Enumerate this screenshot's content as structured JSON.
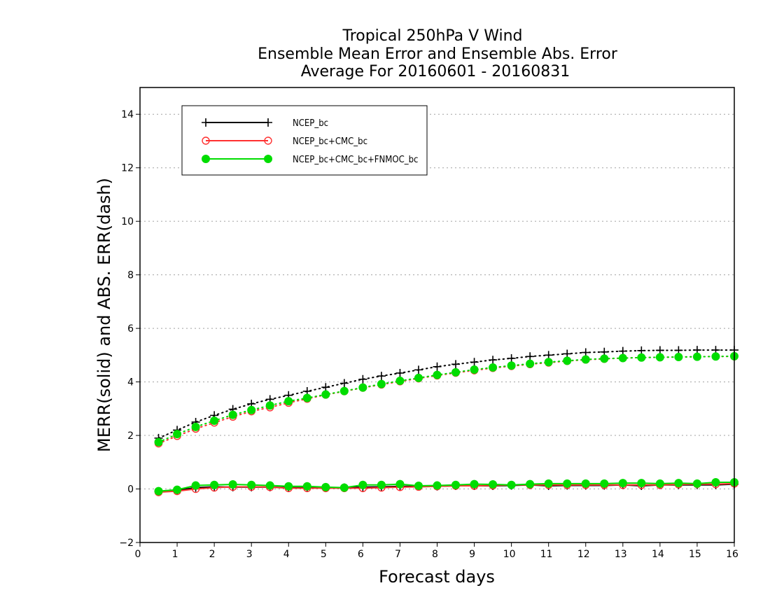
{
  "chart_data": {
    "type": "line",
    "title": [
      "Tropical 250hPa V Wind",
      "Ensemble Mean Error and Ensemble Abs. Error",
      "Average For 20160601 - 20160831"
    ],
    "xlabel": "Forecast days",
    "ylabel": "MERR(solid) and ABS. ERR(dash)",
    "xlim": [
      0,
      16
    ],
    "ylim": [
      -2,
      15
    ],
    "xticks": [
      0,
      1,
      2,
      3,
      4,
      5,
      6,
      7,
      8,
      9,
      10,
      11,
      12,
      13,
      14,
      15,
      16
    ],
    "yticks": [
      -2,
      0,
      2,
      4,
      6,
      8,
      10,
      12,
      14
    ],
    "grid": "horizontal dotted",
    "legend_position": "top-left",
    "x": [
      0.5,
      1,
      1.5,
      2,
      2.5,
      3,
      3.5,
      4,
      4.5,
      5,
      5.5,
      6,
      6.5,
      7,
      7.5,
      8,
      8.5,
      9,
      9.5,
      10,
      10.5,
      11,
      11.5,
      12,
      12.5,
      13,
      13.5,
      14,
      14.5,
      15,
      15.5,
      16
    ],
    "series": [
      {
        "name": "NCEP_bc",
        "color": "#000000",
        "marker": "plus",
        "abs_err": [
          1.9,
          2.2,
          2.5,
          2.75,
          2.98,
          3.18,
          3.35,
          3.5,
          3.65,
          3.8,
          3.95,
          4.1,
          4.22,
          4.33,
          4.45,
          4.57,
          4.66,
          4.74,
          4.82,
          4.88,
          4.95,
          5.0,
          5.05,
          5.1,
          5.12,
          5.15,
          5.17,
          5.18,
          5.18,
          5.19,
          5.19,
          5.19
        ],
        "mean_err": [
          -0.1,
          -0.05,
          0.05,
          0.08,
          0.07,
          0.07,
          0.07,
          0.05,
          0.05,
          0.05,
          0.05,
          0.07,
          0.08,
          0.1,
          0.1,
          0.1,
          0.12,
          0.12,
          0.12,
          0.13,
          0.15,
          0.12,
          0.13,
          0.13,
          0.13,
          0.15,
          0.12,
          0.15,
          0.15,
          0.15,
          0.15,
          0.18
        ]
      },
      {
        "name": "NCEP_bc+CMC_bc",
        "color": "#ff3030",
        "marker": "open-circle",
        "abs_err": [
          1.7,
          1.98,
          2.25,
          2.48,
          2.7,
          2.9,
          3.05,
          3.22,
          3.37,
          3.52,
          3.65,
          3.78,
          3.9,
          4.02,
          4.13,
          4.24,
          4.34,
          4.43,
          4.52,
          4.59,
          4.66,
          4.72,
          4.78,
          4.83,
          4.86,
          4.89,
          4.91,
          4.92,
          4.93,
          4.94,
          4.95,
          4.95
        ],
        "mean_err": [
          -0.12,
          -0.08,
          0.0,
          0.05,
          0.08,
          0.08,
          0.07,
          0.03,
          0.03,
          0.03,
          0.03,
          0.03,
          0.05,
          0.07,
          0.08,
          0.1,
          0.12,
          0.12,
          0.13,
          0.15,
          0.15,
          0.15,
          0.15,
          0.15,
          0.15,
          0.15,
          0.15,
          0.15,
          0.17,
          0.18,
          0.18,
          0.2
        ]
      },
      {
        "name": "NCEP_bc+CMC_bc+FNMOC_bc",
        "color": "#00dd00",
        "marker": "filled-circle",
        "abs_err": [
          1.75,
          2.05,
          2.32,
          2.55,
          2.77,
          2.95,
          3.12,
          3.28,
          3.4,
          3.53,
          3.66,
          3.79,
          3.92,
          4.04,
          4.15,
          4.26,
          4.36,
          4.46,
          4.54,
          4.61,
          4.68,
          4.74,
          4.79,
          4.84,
          4.87,
          4.89,
          4.91,
          4.92,
          4.93,
          4.94,
          4.95,
          4.96
        ],
        "mean_err": [
          -0.08,
          -0.03,
          0.13,
          0.15,
          0.17,
          0.15,
          0.13,
          0.1,
          0.1,
          0.07,
          0.05,
          0.15,
          0.15,
          0.18,
          0.12,
          0.13,
          0.15,
          0.18,
          0.17,
          0.15,
          0.18,
          0.2,
          0.2,
          0.2,
          0.2,
          0.22,
          0.22,
          0.2,
          0.22,
          0.2,
          0.25,
          0.25
        ]
      }
    ]
  }
}
